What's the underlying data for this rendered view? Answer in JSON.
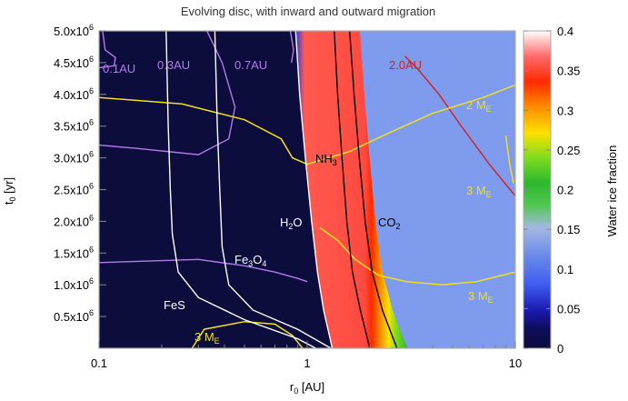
{
  "chart_data": {
    "type": "heatmap",
    "title": "Evolving disc, with inward and outward migration",
    "xlabel": "r",
    "xlabel_sub": "0",
    "xlabel_unit": " [AU]",
    "ylabel": "t",
    "ylabel_sub": "0",
    "ylabel_unit": " [yr]",
    "x_scale": "log",
    "xlim": [
      0.1,
      10
    ],
    "ylim": [
      0,
      5000000
    ],
    "x_ticks": [
      {
        "value": 0.1,
        "label": "0.1"
      },
      {
        "value": 1,
        "label": "1"
      },
      {
        "value": 10,
        "label": "10"
      }
    ],
    "y_ticks": [
      {
        "value": 500000,
        "mant": "0.5x10",
        "exp": "6"
      },
      {
        "value": 1000000,
        "mant": "1.0x10",
        "exp": "6"
      },
      {
        "value": 1500000,
        "mant": "1.5x10",
        "exp": "6"
      },
      {
        "value": 2000000,
        "mant": "2.0x10",
        "exp": "6"
      },
      {
        "value": 2500000,
        "mant": "2.5x10",
        "exp": "6"
      },
      {
        "value": 3000000,
        "mant": "3.0x10",
        "exp": "6"
      },
      {
        "value": 3500000,
        "mant": "3.5x10",
        "exp": "6"
      },
      {
        "value": 4000000,
        "mant": "4.0x10",
        "exp": "6"
      },
      {
        "value": 4500000,
        "mant": "4.5x10",
        "exp": "6"
      },
      {
        "value": 5000000,
        "mant": "5.0x10",
        "exp": "6"
      }
    ],
    "colorbar": {
      "label": "Water ice fraction",
      "min": 0,
      "max": 0.4,
      "ticks": [
        "0",
        "0.05",
        "0.1",
        "0.15",
        "0.2",
        "0.25",
        "0.3",
        "0.35",
        "0.4"
      ],
      "palette": [
        "#0d0d3d",
        "#1a1ab0",
        "#3d5cf0",
        "#6f8fe8",
        "#a4b8e0",
        "#2cb82c",
        "#7fdc20",
        "#ffe000",
        "#ff8c00",
        "#ff2a00",
        "#ff5a5a",
        "#ff9a9a",
        "#ffffff"
      ]
    },
    "regions": [
      {
        "name": "refractory",
        "value": 0.0,
        "color": "#0d0d3d"
      },
      {
        "name": "water_ice_band",
        "value": 0.33,
        "color": "#ff5a50"
      },
      {
        "name": "outer_disc",
        "value": 0.12,
        "color": "#7f9bee"
      }
    ],
    "condensation_fronts": [
      {
        "label": "H",
        "sub": "2",
        "tail": "O",
        "color": "#ffffff",
        "points": [
          [
            0.88,
            5000000
          ],
          [
            0.92,
            4000000
          ],
          [
            0.98,
            3000000
          ],
          [
            1.05,
            2000000
          ],
          [
            1.12,
            1200000
          ],
          [
            1.2,
            600000
          ],
          [
            1.32,
            0
          ]
        ]
      },
      {
        "label": "NH",
        "sub": "3",
        "tail": "",
        "color": "#000000",
        "points": [
          [
            1.35,
            5000000
          ],
          [
            1.4,
            4000000
          ],
          [
            1.47,
            3000000
          ],
          [
            1.55,
            2000000
          ],
          [
            1.65,
            1200000
          ],
          [
            1.8,
            600000
          ],
          [
            2.0,
            0
          ]
        ]
      },
      {
        "label": "CO",
        "sub": "2",
        "tail": "",
        "color": "#000000",
        "points": [
          [
            1.6,
            5000000
          ],
          [
            1.68,
            4000000
          ],
          [
            1.78,
            3000000
          ],
          [
            1.9,
            2000000
          ],
          [
            2.05,
            1200000
          ],
          [
            2.3,
            600000
          ],
          [
            2.7,
            0
          ]
        ]
      },
      {
        "label": "Fe",
        "sub": "3",
        "tail": "O",
        "sub2": "4",
        "color": "#ffffff",
        "points": [
          [
            0.36,
            5000000
          ],
          [
            0.37,
            3500000
          ],
          [
            0.38,
            2500000
          ],
          [
            0.39,
            1600000
          ],
          [
            0.42,
            1000000
          ],
          [
            0.55,
            600000
          ],
          [
            0.9,
            300000
          ],
          [
            1.3,
            0
          ]
        ]
      },
      {
        "label": "FeS",
        "sub": "",
        "tail": "",
        "color": "#ffffff",
        "points": [
          [
            0.21,
            5000000
          ],
          [
            0.215,
            3500000
          ],
          [
            0.22,
            2500000
          ],
          [
            0.225,
            1800000
          ],
          [
            0.24,
            1200000
          ],
          [
            0.3,
            800000
          ],
          [
            0.5,
            450000
          ],
          [
            0.9,
            150000
          ],
          [
            1.1,
            0
          ]
        ]
      }
    ],
    "annotation_curves": [
      {
        "label": "0.1AU",
        "color": "#b07be8",
        "points": [
          [
            0.104,
            5000000
          ],
          [
            0.107,
            4700000
          ],
          [
            0.12,
            4580000
          ],
          [
            0.118,
            4450000
          ],
          [
            0.1,
            4420000
          ]
        ]
      },
      {
        "label": "0.3AU",
        "color": "#b07be8",
        "points": [
          [
            0.33,
            5000000
          ],
          [
            0.39,
            4500000
          ],
          [
            0.45,
            3800000
          ],
          [
            0.42,
            3300000
          ],
          [
            0.3,
            3050000
          ],
          [
            0.15,
            3150000
          ],
          [
            0.1,
            3200000
          ]
        ]
      },
      {
        "label": "0.7AU",
        "color": "#b07be8",
        "points": [
          [
            0.83,
            5000000
          ],
          [
            0.86,
            4700000
          ],
          [
            0.84,
            4500000
          ]
        ]
      },
      {
        "label": "2.0AU",
        "color": "#d42020",
        "points": [
          [
            2.95,
            4600000
          ],
          [
            3.4,
            4400000
          ],
          [
            4.3,
            4000000
          ],
          [
            5.5,
            3500000
          ],
          [
            7.5,
            2900000
          ],
          [
            10,
            2400000
          ]
        ]
      },
      {
        "label": "",
        "color": "#b07be8",
        "points": [
          [
            0.1,
            1350000
          ],
          [
            0.3,
            1400000
          ],
          [
            0.5,
            1300000
          ],
          [
            0.7,
            1200000
          ],
          [
            0.9,
            1100000
          ],
          [
            1.0,
            1050000
          ]
        ]
      }
    ],
    "mass_curves": [
      {
        "label": "2 M",
        "sub": "E",
        "color": "#f0e020",
        "points": [
          [
            0.1,
            3950000
          ],
          [
            0.25,
            3850000
          ],
          [
            0.5,
            3600000
          ],
          [
            0.75,
            3300000
          ],
          [
            0.85,
            3000000
          ],
          [
            1.0,
            2900000
          ],
          [
            1.6,
            3100000
          ],
          [
            2.5,
            3400000
          ],
          [
            4,
            3700000
          ],
          [
            7,
            3950000
          ],
          [
            10,
            4150000
          ]
        ]
      },
      {
        "label": "3 M",
        "sub": "E",
        "color": "#f0e020",
        "points": [
          [
            9.0,
            3350000
          ],
          [
            9.4,
            2900000
          ],
          [
            9.8,
            2600000
          ]
        ]
      },
      {
        "label": "3 M",
        "sub": "E",
        "color": "#f0e020",
        "points": [
          [
            1.15,
            1900000
          ],
          [
            1.4,
            1700000
          ],
          [
            1.7,
            1400000
          ],
          [
            2.2,
            1150000
          ],
          [
            3.0,
            1050000
          ],
          [
            4.5,
            1000000
          ],
          [
            6.5,
            1050000
          ],
          [
            10,
            1200000
          ]
        ]
      },
      {
        "label": "3 M",
        "sub": "E",
        "color": "#f0e020",
        "points": [
          [
            0.28,
            0
          ],
          [
            0.32,
            300000
          ],
          [
            0.5,
            420000
          ],
          [
            0.7,
            380000
          ],
          [
            0.85,
            200000
          ],
          [
            0.95,
            0
          ]
        ]
      }
    ],
    "grid": false,
    "legend": "none"
  }
}
